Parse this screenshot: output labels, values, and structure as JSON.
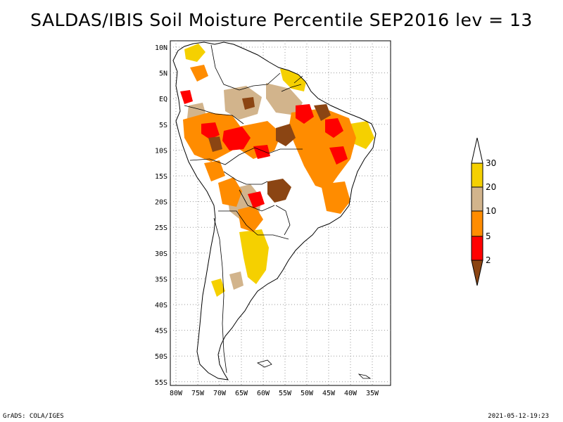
{
  "title": "SALDAS/IBIS Soil Moisture Percentile SEP2016 lev = 13",
  "map": {
    "lat_labels": [
      "10N",
      "5N",
      "EQ",
      "5S",
      "10S",
      "15S",
      "20S",
      "25S",
      "30S",
      "35S",
      "40S",
      "45S",
      "50S",
      "55S"
    ],
    "lon_labels": [
      "80W",
      "75W",
      "70W",
      "65W",
      "60W",
      "55W",
      "50W",
      "45W",
      "40W",
      "35W"
    ]
  },
  "legend": {
    "labels": [
      "30",
      "20",
      "10",
      "5",
      "2"
    ],
    "colors": {
      "above_30": "#ffffff",
      "20_30": "#f5d000",
      "10_20": "#d2b48c",
      "5_10": "#ff8c00",
      "2_5": "#ff0000",
      "below_2": "#8b4513"
    }
  },
  "footer": {
    "left": "GrADS: COLA/IGES",
    "right": "2021-05-12-19:23"
  }
}
